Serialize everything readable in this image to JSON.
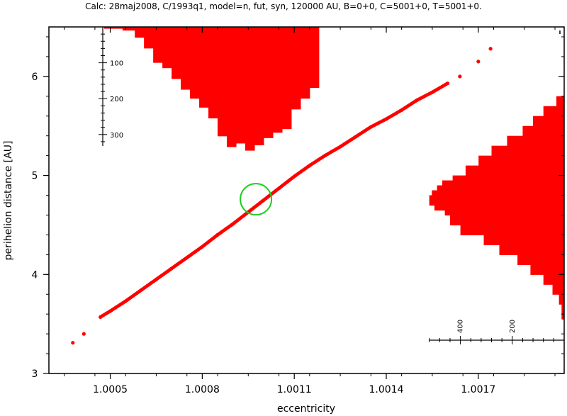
{
  "chart_data": {
    "type": "scatter",
    "title": "Calc: 28maj2008, C/1993q1, model=n, fut, syn, 120000 AU, B=0+0, C=5001+0, T=5001+0.",
    "xlabel": "eccentricity",
    "ylabel": "perihelion distance [AU]",
    "xlim": [
      1.0003,
      1.00198
    ],
    "ylim": [
      3.0,
      6.5
    ],
    "x_ticks": [
      1.0005,
      1.0008,
      1.0011,
      1.0014,
      1.0017
    ],
    "x_tick_labels": [
      "1.0005",
      "1.0008",
      "1.0011",
      "1.0014",
      "1.0017"
    ],
    "y_ticks": [
      3,
      4,
      5,
      6
    ],
    "y_tick_labels": [
      "3",
      "4",
      "5",
      "6"
    ],
    "series_color": "#ff0000",
    "marker_color": "#22cc22",
    "series": [
      {
        "x": [
          1.000378,
          1.000414,
          1.000468,
          1.0005,
          1.00055,
          1.0006,
          1.00065,
          1.0007,
          1.00075,
          1.0008,
          1.00085,
          1.0009,
          1.00095,
          1.001,
          1.00105,
          1.0011,
          1.00115,
          1.0012,
          1.00125,
          1.0013,
          1.00135,
          1.0014,
          1.00145,
          1.0015,
          1.00155,
          1.0016,
          1.00164,
          1.0017,
          1.00174
        ],
        "y": [
          3.31,
          3.4,
          3.57,
          3.63,
          3.73,
          3.84,
          3.95,
          4.06,
          4.17,
          4.28,
          4.4,
          4.51,
          4.63,
          4.75,
          4.87,
          4.99,
          5.1,
          5.2,
          5.29,
          5.39,
          5.49,
          5.57,
          5.66,
          5.76,
          5.84,
          5.93,
          6.0,
          6.15,
          6.28
        ]
      }
    ],
    "highlight": {
      "x": 1.000975,
      "y": 4.76,
      "label": "circle"
    },
    "top_histogram": {
      "scale_ticks": [
        100,
        200,
        300
      ],
      "scale_tick_labels": [
        "100",
        "200",
        "300"
      ],
      "bin_edges": [
        1.00048,
        1.00054,
        1.00058,
        1.00061,
        1.00064,
        1.00067,
        1.0007,
        1.00073,
        1.00076,
        1.00079,
        1.00082,
        1.00085,
        1.00088,
        1.00091,
        1.00094,
        1.00097,
        1.001,
        1.00103,
        1.00106,
        1.00109,
        1.00112,
        1.00115,
        1.00118
      ],
      "counts": [
        5,
        10,
        30,
        60,
        100,
        115,
        145,
        175,
        200,
        225,
        255,
        305,
        335,
        325,
        345,
        330,
        310,
        295,
        285,
        230,
        200,
        170
      ]
    },
    "right_histogram": {
      "scale_ticks": [
        400,
        200
      ],
      "scale_tick_labels": [
        "400",
        "200"
      ],
      "bin_edges": [
        3.55,
        3.7,
        3.8,
        3.9,
        4.0,
        4.1,
        4.2,
        4.3,
        4.4,
        4.5,
        4.6,
        4.65,
        4.7,
        4.75,
        4.8,
        4.85,
        4.9,
        4.95,
        5.0,
        5.1,
        5.2,
        5.3,
        5.4,
        5.5,
        5.6,
        5.7,
        5.8
      ],
      "counts": [
        10,
        20,
        45,
        80,
        130,
        180,
        250,
        310,
        400,
        440,
        460,
        500,
        520,
        520,
        510,
        490,
        470,
        430,
        380,
        330,
        280,
        220,
        160,
        120,
        80,
        30
      ]
    }
  }
}
